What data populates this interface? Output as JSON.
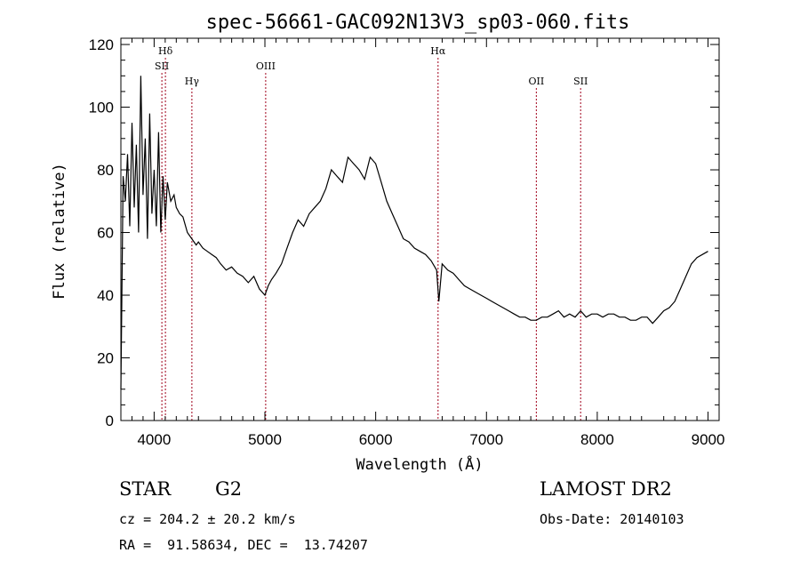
{
  "chart_data": {
    "type": "line",
    "title": "spec-56661-GAC092N13V3_sp03-060.fits",
    "xlabel": "Wavelength (Å)",
    "ylabel": "Flux (relative)",
    "xlim": [
      3700,
      9100
    ],
    "ylim": [
      0,
      122
    ],
    "xticks": [
      4000,
      5000,
      6000,
      7000,
      8000,
      9000
    ],
    "yticks": [
      0,
      20,
      40,
      60,
      80,
      100,
      120
    ],
    "grid": false,
    "series": [
      {
        "x": [
          3700,
          3720,
          3740,
          3760,
          3780,
          3800,
          3820,
          3840,
          3860,
          3880,
          3900,
          3920,
          3940,
          3960,
          3980,
          4000,
          4020,
          4040,
          4060,
          4080,
          4100,
          4120,
          4150,
          4180,
          4200,
          4230,
          4260,
          4300,
          4340,
          4380,
          4400,
          4440,
          4480,
          4520,
          4560,
          4600,
          4650,
          4700,
          4750,
          4800,
          4850,
          4900,
          4950,
          5000,
          5030,
          5060,
          5100,
          5150,
          5200,
          5250,
          5300,
          5350,
          5400,
          5450,
          5500,
          5550,
          5600,
          5650,
          5700,
          5750,
          5800,
          5850,
          5900,
          5950,
          6000,
          6050,
          6100,
          6150,
          6200,
          6250,
          6300,
          6350,
          6400,
          6450,
          6500,
          6550,
          6570,
          6600,
          6650,
          6700,
          6750,
          6800,
          6850,
          6900,
          6950,
          7000,
          7050,
          7100,
          7150,
          7200,
          7250,
          7300,
          7350,
          7400,
          7450,
          7500,
          7550,
          7600,
          7650,
          7700,
          7750,
          7800,
          7850,
          7900,
          7950,
          8000,
          8050,
          8100,
          8150,
          8200,
          8250,
          8300,
          8350,
          8400,
          8450,
          8500,
          8550,
          8600,
          8650,
          8700,
          8750,
          8800,
          8850,
          8900,
          8950,
          9000
        ],
        "y": [
          10,
          78,
          70,
          85,
          62,
          95,
          68,
          88,
          60,
          110,
          72,
          90,
          58,
          98,
          66,
          80,
          62,
          92,
          60,
          78,
          64,
          76,
          70,
          72,
          68,
          66,
          65,
          60,
          58,
          56,
          57,
          55,
          54,
          53,
          52,
          50,
          48,
          49,
          47,
          46,
          44,
          46,
          42,
          40,
          43,
          45,
          47,
          50,
          55,
          60,
          64,
          62,
          66,
          68,
          70,
          74,
          80,
          78,
          76,
          84,
          82,
          80,
          77,
          84,
          82,
          76,
          70,
          66,
          62,
          58,
          57,
          55,
          54,
          53,
          51,
          48,
          38,
          50,
          48,
          47,
          45,
          43,
          42,
          41,
          40,
          39,
          38,
          37,
          36,
          35,
          34,
          33,
          33,
          32,
          32,
          33,
          33,
          34,
          35,
          33,
          34,
          33,
          35,
          33,
          34,
          34,
          33,
          34,
          34,
          33,
          33,
          32,
          32,
          33,
          33,
          31,
          33,
          35,
          36,
          38,
          42,
          46,
          50,
          52,
          53,
          54
        ]
      }
    ],
    "emission_lines": [
      {
        "label": "Hδ",
        "x": 4102,
        "row": 0
      },
      {
        "label": "SII",
        "x": 4070,
        "row": 1
      },
      {
        "label": "Hγ",
        "x": 4341,
        "row": 2
      },
      {
        "label": "OIII",
        "x": 5007,
        "row": 1
      },
      {
        "label": "Hα",
        "x": 6563,
        "row": 0
      },
      {
        "label": "OII",
        "x": 7450,
        "row": 2
      },
      {
        "label": "SII",
        "x": 7850,
        "row": 2
      }
    ]
  },
  "info": {
    "obj_class": "STAR",
    "subclass": "G2",
    "survey": "LAMOST DR2",
    "cz": "cz = 204.2 ± 20.2 km/s",
    "obs_date": "Obs-Date: 20140103",
    "coords": "RA =  91.58634, DEC =  13.74207"
  }
}
